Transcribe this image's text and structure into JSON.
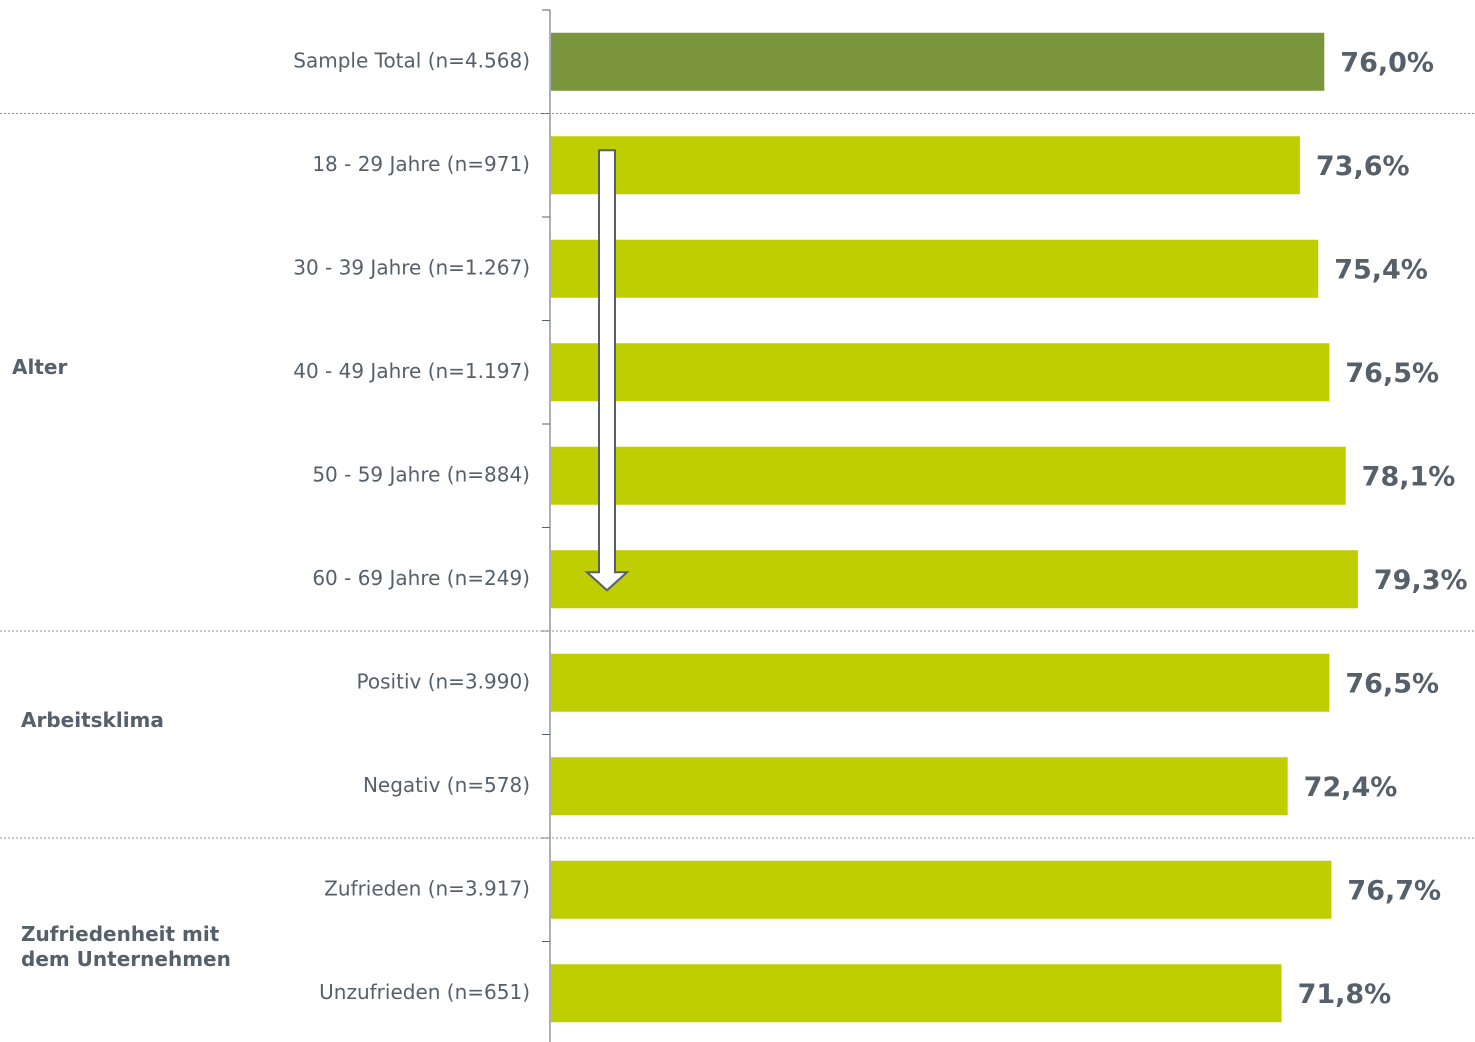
{
  "chart_data": {
    "type": "bar",
    "orientation": "horizontal",
    "categories": [
      "Sample Total (n=4.568)",
      "18 - 29 Jahre (n=971)",
      "30 - 39 Jahre (n=1.267)",
      "40 - 49 Jahre (n=1.197)",
      "50 - 59 Jahre (n=884)",
      "60 - 69 Jahre (n=249)",
      "Positiv (n=3.990)",
      "Negativ (n=578)",
      "Zufrieden (n=3.917)",
      "Unzufrieden (n=651)"
    ],
    "values": [
      76.0,
      73.6,
      75.4,
      76.5,
      78.1,
      79.3,
      76.5,
      72.4,
      76.7,
      71.8
    ],
    "value_labels": [
      "76,0%",
      "73,6%",
      "75,4%",
      "76,5%",
      "78,1%",
      "79,3%",
      "76,5%",
      "72,4%",
      "76,7%",
      "71,8%"
    ],
    "xlim": [
      0,
      80
    ],
    "groups": [
      {
        "label": "",
        "start": 0,
        "end": 0
      },
      {
        "label": "Alter",
        "start": 1,
        "end": 5
      },
      {
        "label": "Arbeitsklima",
        "start": 6,
        "end": 7
      },
      {
        "label": "Zufriedenheit mit dem Unternehmen",
        "lines": [
          "Zufriedenheit mit",
          "dem Unternehmen"
        ],
        "start": 8,
        "end": 9
      }
    ],
    "colors": {
      "total": "#7a953c",
      "bar": "#bfce00",
      "text": "#56606b",
      "arrow_fill": "#ffffff",
      "arrow_stroke": "#56606b"
    },
    "annotation": "downward arrow across age groups",
    "grid": false
  }
}
